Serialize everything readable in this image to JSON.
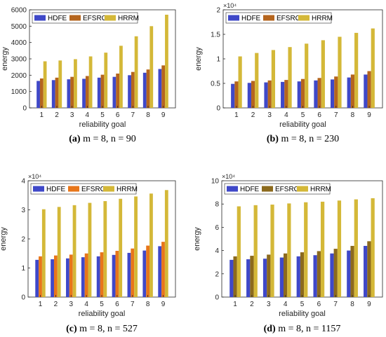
{
  "chart_data": [
    {
      "type": "bar",
      "caption_letter": "(a)",
      "caption_text": "m = 8, n = 90",
      "categories": [
        "1",
        "2",
        "3",
        "4",
        "5",
        "6",
        "7",
        "8",
        "9"
      ],
      "series": [
        {
          "name": "HDFE",
          "values": [
            1650,
            1700,
            1750,
            1780,
            1850,
            1900,
            2000,
            2150,
            2380
          ]
        },
        {
          "name": "EFSRG",
          "values": [
            1800,
            1850,
            1900,
            1950,
            2030,
            2100,
            2200,
            2350,
            2600
          ]
        },
        {
          "name": "HRRM",
          "values": [
            2850,
            2900,
            2980,
            3150,
            3380,
            3800,
            4380,
            5000,
            5700
          ]
        }
      ],
      "colors": [
        "#3f48c8",
        "#b5651d",
        "#d4b838"
      ],
      "xlabel": "reliability goal",
      "ylabel": "energy",
      "ylim": [
        0,
        6000
      ],
      "yticks": [
        0,
        1000,
        2000,
        3000,
        4000,
        5000,
        6000
      ],
      "ytick_labels": [
        "0",
        "1000",
        "2000",
        "3000",
        "4000",
        "5000",
        "6000"
      ],
      "exponent": "",
      "grid": false,
      "legend_position": "top-left"
    },
    {
      "type": "bar",
      "caption_letter": "(b)",
      "caption_text": "m = 8, n = 230",
      "categories": [
        "1",
        "2",
        "3",
        "4",
        "5",
        "6",
        "7",
        "8",
        "9"
      ],
      "series": [
        {
          "name": "HDFE",
          "values": [
            4900,
            5100,
            5200,
            5300,
            5400,
            5600,
            5800,
            6200,
            6800
          ]
        },
        {
          "name": "EFSRG",
          "values": [
            5400,
            5500,
            5600,
            5700,
            5900,
            6100,
            6400,
            6800,
            7500
          ]
        },
        {
          "name": "HRRM",
          "values": [
            10500,
            11200,
            11800,
            12400,
            13100,
            13800,
            14500,
            15300,
            16200
          ]
        }
      ],
      "colors": [
        "#3f48c8",
        "#b5651d",
        "#d4b838"
      ],
      "xlabel": "reliability goal",
      "ylabel": "energy",
      "ylim": [
        0,
        20000
      ],
      "yticks": [
        0,
        5000,
        10000,
        15000,
        20000
      ],
      "ytick_labels": [
        "0",
        "0.5",
        "1",
        "1.5",
        "2"
      ],
      "exponent": "×10⁴",
      "grid": false,
      "legend_position": "top-left"
    },
    {
      "type": "bar",
      "caption_letter": "(c)",
      "caption_text": "m = 8, n = 527",
      "categories": [
        "1",
        "2",
        "3",
        "4",
        "5",
        "6",
        "7",
        "8",
        "9"
      ],
      "series": [
        {
          "name": "HDFE",
          "values": [
            12800,
            13000,
            13300,
            13700,
            14000,
            14500,
            15200,
            16000,
            17500
          ]
        },
        {
          "name": "EFSRG",
          "values": [
            14000,
            14300,
            14600,
            15000,
            15400,
            15900,
            16700,
            17700,
            19000
          ]
        },
        {
          "name": "HRRM",
          "values": [
            30200,
            31000,
            31600,
            32400,
            33000,
            33800,
            34600,
            35600,
            36800
          ]
        }
      ],
      "colors": [
        "#3f48c8",
        "#e8761a",
        "#d4b838"
      ],
      "xlabel": "reliability goal",
      "ylabel": "energy",
      "ylim": [
        0,
        40000
      ],
      "yticks": [
        0,
        10000,
        20000,
        30000,
        40000
      ],
      "ytick_labels": [
        "0",
        "1",
        "2",
        "3",
        "4"
      ],
      "exponent": "×10⁴",
      "grid": false,
      "legend_position": "top-left"
    },
    {
      "type": "bar",
      "caption_letter": "(d)",
      "caption_text": "m = 8, n = 1157",
      "categories": [
        "1",
        "2",
        "3",
        "4",
        "5",
        "6",
        "7",
        "8",
        "9"
      ],
      "series": [
        {
          "name": "HDFE",
          "values": [
            32000,
            32500,
            33000,
            34000,
            35000,
            36000,
            37500,
            40000,
            44000
          ]
        },
        {
          "name": "EFSRG",
          "values": [
            35000,
            35500,
            36500,
            37500,
            38500,
            39500,
            41500,
            44000,
            48000
          ]
        },
        {
          "name": "HRRM",
          "values": [
            78000,
            79000,
            79500,
            80500,
            81500,
            82000,
            83000,
            84000,
            85000
          ]
        }
      ],
      "colors": [
        "#3f48c8",
        "#8c6a1c",
        "#d4b838"
      ],
      "xlabel": "reliability goal",
      "ylabel": "energy",
      "ylim": [
        0,
        100000
      ],
      "yticks": [
        0,
        20000,
        40000,
        60000,
        80000,
        100000
      ],
      "ytick_labels": [
        "0",
        "2",
        "4",
        "6",
        "8",
        "10"
      ],
      "exponent": "×10⁴",
      "grid": false,
      "legend_position": "top-left"
    }
  ]
}
